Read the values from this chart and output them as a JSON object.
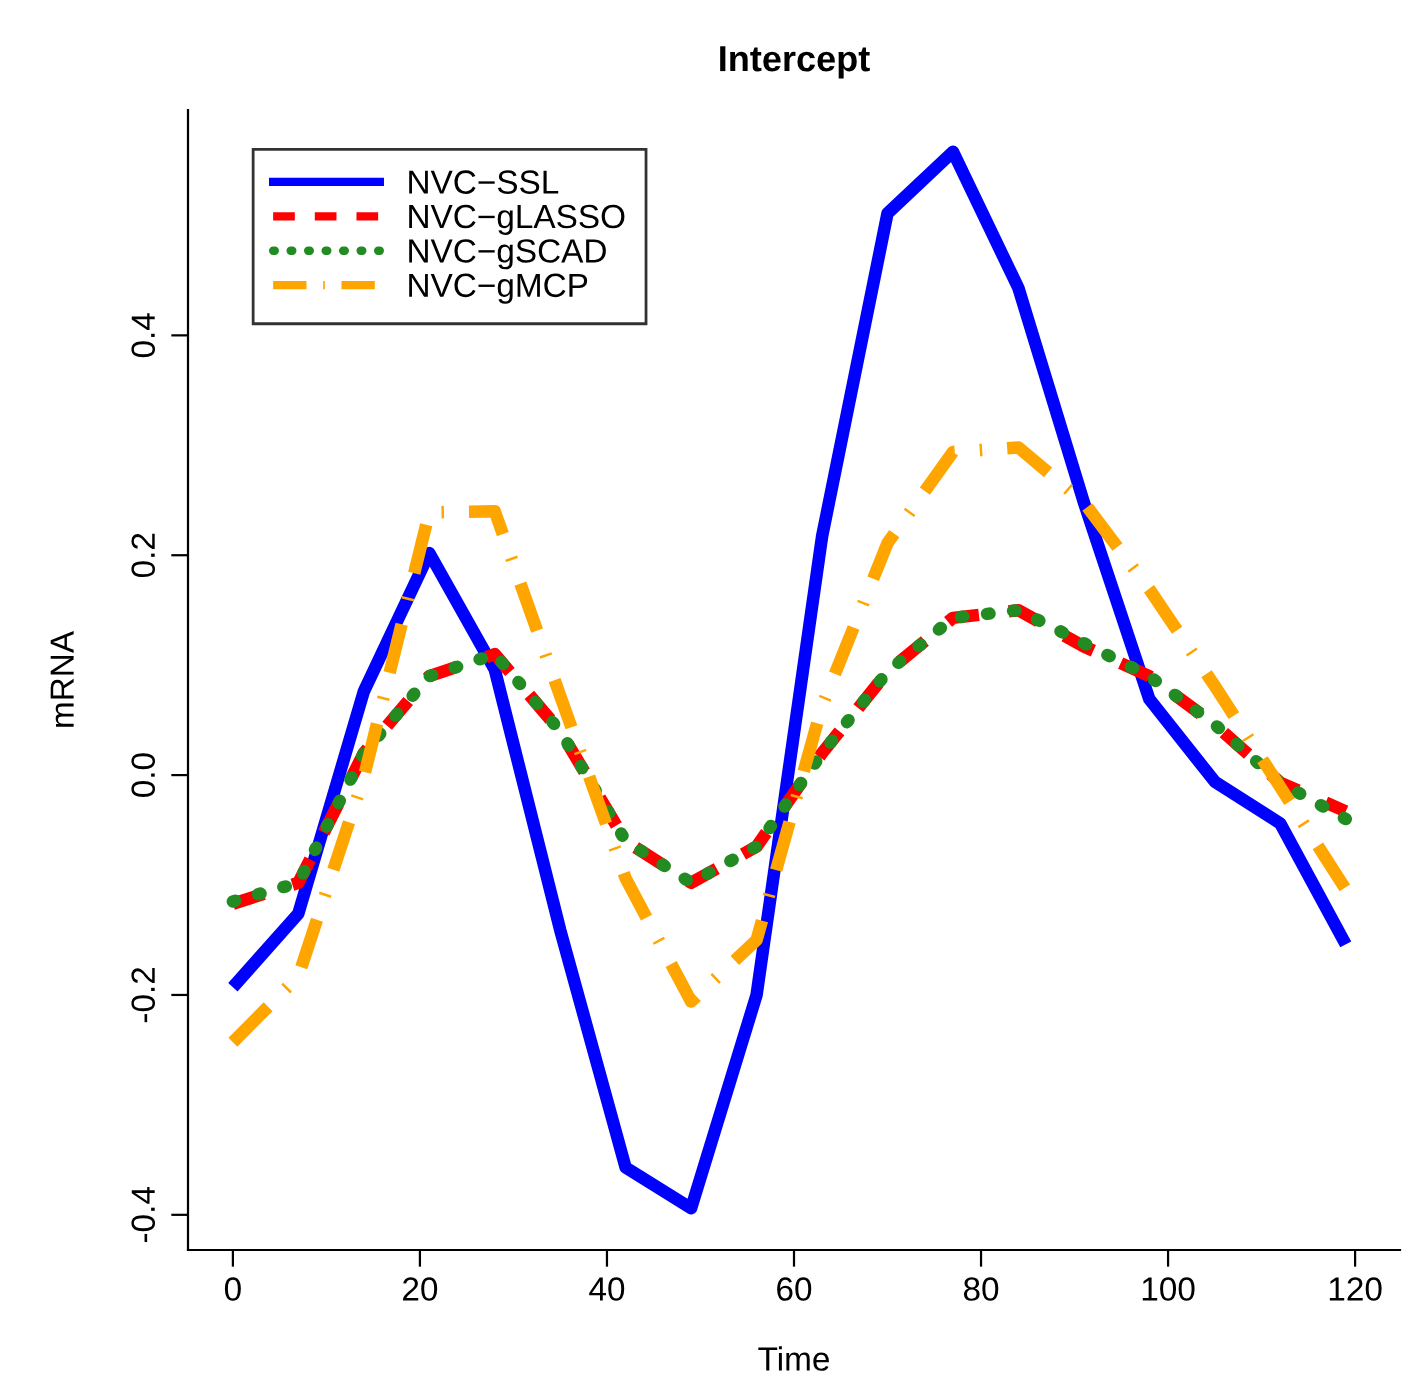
{
  "chart_data": {
    "type": "line",
    "title": "Intercept",
    "xlabel": "Time",
    "ylabel": "mRNA",
    "x": [
      0,
      7,
      14,
      21,
      28,
      35,
      42,
      49,
      56,
      63,
      70,
      77,
      84,
      91,
      98,
      105,
      112,
      119
    ],
    "series": [
      {
        "name": "NVC−SSL",
        "color": "#0000ff",
        "line_style": "solid",
        "values": [
          -0.193,
          -0.126,
          0.076,
          0.202,
          0.096,
          -0.141,
          -0.357,
          -0.394,
          -0.2,
          0.217,
          0.511,
          0.567,
          0.443,
          0.248,
          0.069,
          -0.006,
          -0.044,
          -0.154
        ]
      },
      {
        "name": "NVC−gLASSO",
        "color": "#ff0000",
        "line_style": "dashed",
        "values": [
          -0.117,
          -0.098,
          0.02,
          0.09,
          0.11,
          0.04,
          -0.06,
          -0.098,
          -0.065,
          0.02,
          0.094,
          0.143,
          0.15,
          0.117,
          0.09,
          0.046,
          -0.007,
          -0.033
        ]
      },
      {
        "name": "NVC−gSCAD",
        "color": "#228b22",
        "line_style": "dotted",
        "values": [
          -0.115,
          -0.098,
          0.02,
          0.09,
          0.11,
          0.04,
          -0.06,
          -0.098,
          -0.065,
          0.02,
          0.094,
          0.143,
          0.15,
          0.12,
          0.09,
          0.046,
          -0.007,
          -0.04
        ]
      },
      {
        "name": "NVC−gMCP",
        "color": "#ffa500",
        "line_style": "dashdot",
        "values": [
          -0.243,
          -0.183,
          -0.002,
          0.239,
          0.24,
          0.072,
          -0.094,
          -0.206,
          -0.15,
          0.063,
          0.211,
          0.294,
          0.298,
          0.248,
          0.169,
          0.081,
          -0.011,
          -0.104
        ]
      }
    ],
    "xlim": [
      -4.8,
      124.8
    ],
    "ylim": [
      -0.432,
      0.605
    ],
    "xticks": [
      0,
      20,
      40,
      60,
      80,
      100,
      120
    ],
    "yticks": [
      -0.4,
      -0.2,
      {
        "value": 0,
        "label": "0.0"
      },
      0.2,
      0.4
    ],
    "legend": "top left",
    "grid": false,
    "marker": "none"
  }
}
